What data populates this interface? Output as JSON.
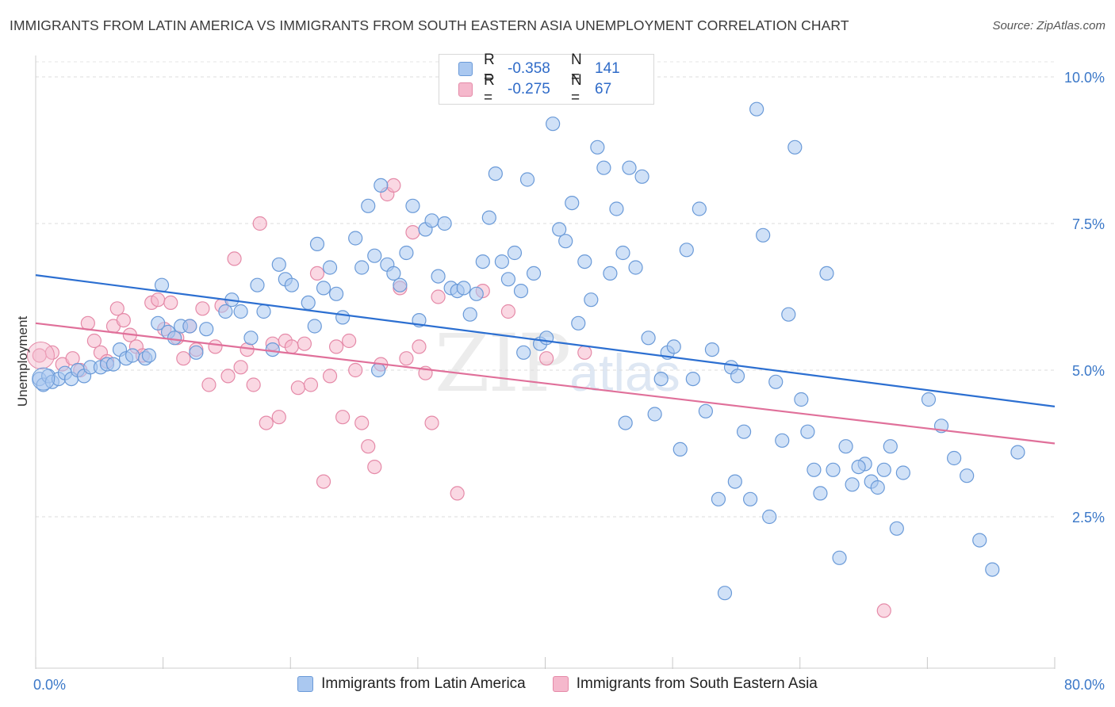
{
  "header": {
    "title": "IMMIGRANTS FROM LATIN AMERICA VS IMMIGRANTS FROM SOUTH EASTERN ASIA UNEMPLOYMENT CORRELATION CHART",
    "source": "Source: ZipAtlas.com"
  },
  "watermark": {
    "zip": "ZIP",
    "atlas": "atlas"
  },
  "legend": {
    "rows": [
      {
        "r_label": "R =",
        "r_value": "-0.358",
        "n_label": "N =",
        "n_value": "141"
      },
      {
        "r_label": "R =",
        "r_value": "-0.275",
        "n_label": "N =",
        "n_value": "67"
      }
    ]
  },
  "bottom_legend": {
    "series1": "Immigrants from Latin America",
    "series2": "Immigrants from South Eastern Asia"
  },
  "colors": {
    "blue_fill": "#aac8f0",
    "blue_stroke": "#6a9ad8",
    "blue_line": "#2c6fd1",
    "pink_fill": "#f5b8cc",
    "pink_stroke": "#e58aa8",
    "pink_line": "#e0709a",
    "tick_label": "#3b78c8"
  },
  "chart_data": {
    "type": "scatter",
    "title": "IMMIGRANTS FROM LATIN AMERICA VS IMMIGRANTS FROM SOUTH EASTERN ASIA UNEMPLOYMENT CORRELATION CHART",
    "xlabel": "",
    "ylabel": "Unemployment",
    "xlim": [
      0,
      80
    ],
    "ylim": [
      0,
      10.2
    ],
    "x_tick_labels": [
      "0.0%",
      "80.0%"
    ],
    "y_ticks": [
      2.5,
      5.0,
      7.5,
      10.0
    ],
    "y_tick_labels": [
      "2.5%",
      "5.0%",
      "7.5%",
      "10.0%"
    ],
    "grid": true,
    "series": [
      {
        "name": "Immigrants from Latin America",
        "color": "blue",
        "R": -0.358,
        "N": 141,
        "trend": {
          "x": [
            0,
            80
          ],
          "y": [
            6.62,
            4.38
          ]
        },
        "points": [
          [
            0.3,
            4.85
          ],
          [
            0.6,
            4.75
          ],
          [
            1.0,
            4.9
          ],
          [
            1.3,
            4.8
          ],
          [
            1.8,
            4.85
          ],
          [
            2.3,
            4.95
          ],
          [
            2.8,
            4.85
          ],
          [
            3.3,
            5.0
          ],
          [
            3.8,
            4.9
          ],
          [
            4.3,
            5.05
          ],
          [
            5.1,
            5.05
          ],
          [
            5.6,
            5.1
          ],
          [
            6.1,
            5.1
          ],
          [
            6.6,
            5.35
          ],
          [
            7.1,
            5.2
          ],
          [
            7.6,
            5.25
          ],
          [
            8.6,
            5.2
          ],
          [
            8.9,
            5.25
          ],
          [
            9.6,
            5.8
          ],
          [
            10.4,
            5.65
          ],
          [
            10.9,
            5.55
          ],
          [
            11.4,
            5.75
          ],
          [
            12.1,
            5.75
          ],
          [
            12.6,
            5.3
          ],
          [
            13.4,
            5.7
          ],
          [
            14.9,
            6.0
          ],
          [
            15.4,
            6.2
          ],
          [
            16.1,
            6.0
          ],
          [
            16.9,
            5.55
          ],
          [
            17.4,
            6.45
          ],
          [
            17.9,
            6.0
          ],
          [
            18.6,
            5.35
          ],
          [
            19.1,
            6.8
          ],
          [
            19.6,
            6.55
          ],
          [
            20.1,
            6.45
          ],
          [
            21.4,
            6.15
          ],
          [
            22.1,
            7.15
          ],
          [
            22.6,
            6.4
          ],
          [
            23.1,
            6.75
          ],
          [
            23.6,
            6.3
          ],
          [
            24.1,
            5.9
          ],
          [
            25.1,
            7.25
          ],
          [
            25.6,
            6.75
          ],
          [
            26.1,
            7.8
          ],
          [
            26.6,
            6.95
          ],
          [
            27.1,
            8.15
          ],
          [
            27.6,
            6.8
          ],
          [
            28.1,
            6.65
          ],
          [
            28.6,
            6.45
          ],
          [
            29.1,
            7.0
          ],
          [
            29.6,
            7.8
          ],
          [
            30.1,
            5.85
          ],
          [
            30.6,
            7.4
          ],
          [
            31.1,
            7.55
          ],
          [
            31.6,
            6.6
          ],
          [
            32.1,
            7.5
          ],
          [
            32.6,
            6.4
          ],
          [
            33.1,
            6.35
          ],
          [
            33.6,
            6.4
          ],
          [
            34.1,
            5.95
          ],
          [
            34.6,
            6.3
          ],
          [
            35.1,
            6.85
          ],
          [
            35.6,
            7.6
          ],
          [
            36.1,
            8.35
          ],
          [
            36.6,
            6.85
          ],
          [
            37.1,
            6.55
          ],
          [
            37.6,
            7.0
          ],
          [
            38.1,
            6.35
          ],
          [
            38.6,
            8.25
          ],
          [
            39.1,
            6.65
          ],
          [
            39.6,
            5.45
          ],
          [
            40.1,
            5.55
          ],
          [
            40.6,
            9.2
          ],
          [
            41.1,
            7.4
          ],
          [
            41.6,
            7.2
          ],
          [
            42.1,
            7.85
          ],
          [
            42.6,
            5.8
          ],
          [
            43.1,
            6.85
          ],
          [
            43.6,
            6.2
          ],
          [
            44.1,
            8.8
          ],
          [
            44.6,
            8.45
          ],
          [
            45.1,
            6.65
          ],
          [
            45.6,
            7.75
          ],
          [
            46.1,
            7.0
          ],
          [
            46.6,
            8.45
          ],
          [
            47.1,
            6.75
          ],
          [
            47.6,
            8.3
          ],
          [
            48.1,
            5.55
          ],
          [
            48.6,
            4.25
          ],
          [
            49.1,
            4.85
          ],
          [
            49.6,
            5.3
          ],
          [
            50.1,
            5.4
          ],
          [
            50.6,
            3.65
          ],
          [
            51.1,
            7.05
          ],
          [
            51.6,
            4.85
          ],
          [
            52.1,
            7.75
          ],
          [
            52.6,
            4.3
          ],
          [
            53.1,
            5.35
          ],
          [
            53.6,
            2.8
          ],
          [
            54.1,
            1.2
          ],
          [
            54.6,
            5.05
          ],
          [
            55.1,
            4.9
          ],
          [
            55.6,
            3.95
          ],
          [
            56.1,
            2.8
          ],
          [
            56.6,
            9.45
          ],
          [
            57.1,
            7.3
          ],
          [
            57.6,
            2.5
          ],
          [
            58.1,
            4.8
          ],
          [
            58.6,
            3.8
          ],
          [
            59.1,
            5.95
          ],
          [
            59.6,
            8.8
          ],
          [
            60.1,
            4.5
          ],
          [
            60.6,
            3.95
          ],
          [
            61.1,
            3.3
          ],
          [
            61.6,
            2.9
          ],
          [
            62.1,
            6.65
          ],
          [
            62.6,
            3.3
          ],
          [
            63.1,
            1.8
          ],
          [
            63.6,
            3.7
          ],
          [
            64.1,
            3.05
          ],
          [
            65.1,
            3.4
          ],
          [
            65.6,
            3.1
          ],
          [
            66.1,
            3.0
          ],
          [
            66.6,
            3.3
          ],
          [
            67.1,
            3.7
          ],
          [
            67.6,
            2.3
          ],
          [
            68.1,
            3.25
          ],
          [
            70.1,
            4.5
          ],
          [
            71.1,
            4.05
          ],
          [
            72.1,
            3.5
          ],
          [
            73.1,
            3.2
          ],
          [
            74.1,
            2.1
          ],
          [
            75.1,
            1.6
          ],
          [
            77.1,
            3.6
          ],
          [
            64.6,
            3.35
          ],
          [
            54.9,
            3.1
          ],
          [
            46.3,
            4.1
          ],
          [
            38.3,
            5.3
          ],
          [
            26.9,
            5.0
          ],
          [
            21.9,
            5.75
          ],
          [
            9.9,
            6.45
          ]
        ]
      },
      {
        "name": "Immigrants from South Eastern Asia",
        "color": "pink",
        "R": -0.275,
        "N": 67,
        "trend": {
          "x": [
            0,
            80
          ],
          "y": [
            5.8,
            3.75
          ]
        },
        "points": [
          [
            0.3,
            5.25
          ],
          [
            1.3,
            5.3
          ],
          [
            2.1,
            5.1
          ],
          [
            2.9,
            5.2
          ],
          [
            3.5,
            5.0
          ],
          [
            4.1,
            5.8
          ],
          [
            4.6,
            5.5
          ],
          [
            5.1,
            5.3
          ],
          [
            5.6,
            5.15
          ],
          [
            6.1,
            5.75
          ],
          [
            6.4,
            6.05
          ],
          [
            6.9,
            5.85
          ],
          [
            7.4,
            5.6
          ],
          [
            7.9,
            5.4
          ],
          [
            8.4,
            5.25
          ],
          [
            9.1,
            6.15
          ],
          [
            9.6,
            6.2
          ],
          [
            10.1,
            5.7
          ],
          [
            10.6,
            6.15
          ],
          [
            11.1,
            5.55
          ],
          [
            11.6,
            5.2
          ],
          [
            12.1,
            5.75
          ],
          [
            12.6,
            5.35
          ],
          [
            13.1,
            6.05
          ],
          [
            13.6,
            4.75
          ],
          [
            14.1,
            5.4
          ],
          [
            14.6,
            6.1
          ],
          [
            15.1,
            4.9
          ],
          [
            15.6,
            6.9
          ],
          [
            16.1,
            5.05
          ],
          [
            16.6,
            5.35
          ],
          [
            17.1,
            4.75
          ],
          [
            17.6,
            7.5
          ],
          [
            18.1,
            4.1
          ],
          [
            18.6,
            5.45
          ],
          [
            19.1,
            4.2
          ],
          [
            19.6,
            5.5
          ],
          [
            20.1,
            5.4
          ],
          [
            20.6,
            4.7
          ],
          [
            21.1,
            5.45
          ],
          [
            21.6,
            4.75
          ],
          [
            22.1,
            6.65
          ],
          [
            22.6,
            3.1
          ],
          [
            23.1,
            4.9
          ],
          [
            23.6,
            5.4
          ],
          [
            24.1,
            4.2
          ],
          [
            24.6,
            5.5
          ],
          [
            25.1,
            5.0
          ],
          [
            25.6,
            4.1
          ],
          [
            26.1,
            3.7
          ],
          [
            26.6,
            3.35
          ],
          [
            27.1,
            5.1
          ],
          [
            27.6,
            8.0
          ],
          [
            28.1,
            8.15
          ],
          [
            28.6,
            6.4
          ],
          [
            29.1,
            5.2
          ],
          [
            29.6,
            7.35
          ],
          [
            30.1,
            5.4
          ],
          [
            30.6,
            4.95
          ],
          [
            31.1,
            4.1
          ],
          [
            31.6,
            6.25
          ],
          [
            33.1,
            2.9
          ],
          [
            37.1,
            6.0
          ],
          [
            40.1,
            5.2
          ],
          [
            43.1,
            5.3
          ],
          [
            35.1,
            6.35
          ],
          [
            66.6,
            0.9
          ]
        ]
      }
    ]
  }
}
